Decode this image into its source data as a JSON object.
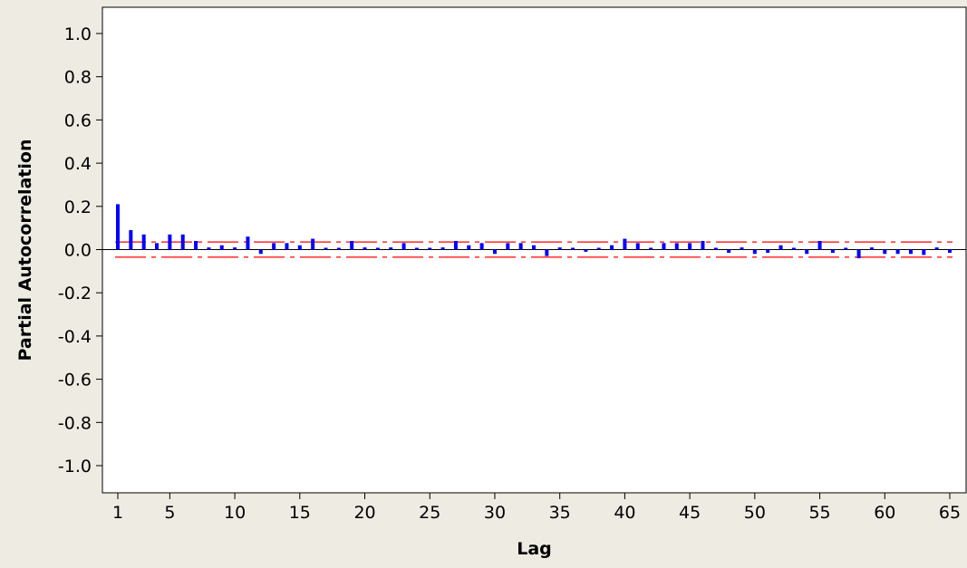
{
  "chart_data": {
    "type": "bar",
    "title": "",
    "xlabel": "Lag",
    "ylabel": "Partial Autocorrelation",
    "xlim": [
      0,
      66
    ],
    "ylim": [
      -1.1,
      1.1
    ],
    "x_ticks": [
      1,
      5,
      10,
      15,
      20,
      25,
      30,
      35,
      40,
      45,
      50,
      55,
      60,
      65
    ],
    "y_ticks": [
      1.0,
      0.8,
      0.6,
      0.4,
      0.2,
      0.0,
      -0.2,
      -0.4,
      -0.6,
      -0.8,
      -1.0
    ],
    "y_tick_labels": [
      "1.0",
      "0.8",
      "0.6",
      "0.4",
      "0.2",
      "0.0",
      "-0.2",
      "-0.4",
      "-0.6",
      "-0.8",
      "-1.0"
    ],
    "lags": [
      1,
      2,
      3,
      4,
      5,
      6,
      7,
      8,
      9,
      10,
      11,
      12,
      13,
      14,
      15,
      16,
      17,
      18,
      19,
      20,
      21,
      22,
      23,
      24,
      25,
      26,
      27,
      28,
      29,
      30,
      31,
      32,
      33,
      34,
      35,
      36,
      37,
      38,
      39,
      40,
      41,
      42,
      43,
      44,
      45,
      46,
      47,
      48,
      49,
      50,
      51,
      52,
      53,
      54,
      55,
      56,
      57,
      58,
      59,
      60,
      61,
      62,
      63,
      64,
      65
    ],
    "values": [
      0.21,
      0.09,
      0.07,
      0.03,
      0.07,
      0.07,
      0.04,
      0.01,
      0.02,
      0.01,
      0.06,
      -0.02,
      0.03,
      0.03,
      0.02,
      0.05,
      0.005,
      0.005,
      0.04,
      0.01,
      0.005,
      0.01,
      0.03,
      0.005,
      0.005,
      0.01,
      0.04,
      0.02,
      0.03,
      -0.02,
      0.03,
      0.03,
      0.02,
      -0.03,
      0.01,
      0.005,
      -0.01,
      0.005,
      0.02,
      0.05,
      0.03,
      0.005,
      0.03,
      0.03,
      0.03,
      0.04,
      0.005,
      -0.015,
      0.01,
      -0.02,
      -0.015,
      0.02,
      0.005,
      -0.02,
      0.04,
      -0.015,
      0.005,
      -0.04,
      0.01,
      -0.02,
      -0.02,
      -0.02,
      -0.025,
      0.01,
      -0.015
    ],
    "confidence_limit": 0.035,
    "bar_color": "#0000ff",
    "limit_color": "#ff0000",
    "grid": false
  }
}
